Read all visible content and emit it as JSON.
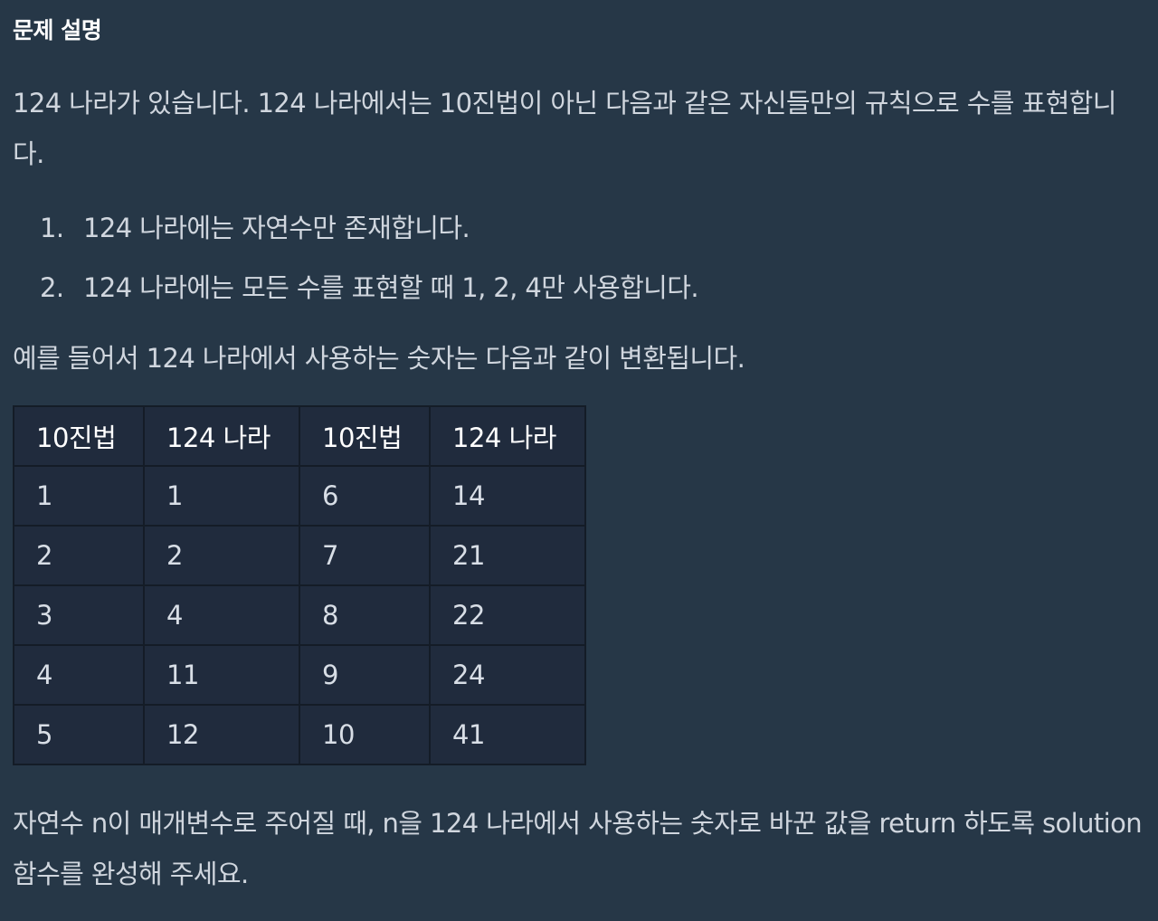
{
  "section": {
    "title": "문제 설명"
  },
  "intro": {
    "text": "124 나라가 있습니다. 124 나라에서는 10진법이 아닌 다음과 같은 자신들만의 규칙으로 수를 표현합니다."
  },
  "rules": [
    {
      "number": "1.",
      "text": "124 나라에는 자연수만 존재합니다."
    },
    {
      "number": "2.",
      "text": "124 나라에는 모든 수를 표현할 때 1, 2, 4만 사용합니다."
    }
  ],
  "example": {
    "text": "예를 들어서 124 나라에서 사용하는 숫자는 다음과 같이 변환됩니다."
  },
  "table": {
    "headers": [
      "10진법",
      "124 나라",
      "10진법",
      "124 나라"
    ],
    "rows": [
      [
        "1",
        "1",
        "6",
        "14"
      ],
      [
        "2",
        "2",
        "7",
        "21"
      ],
      [
        "3",
        "4",
        "8",
        "22"
      ],
      [
        "4",
        "11",
        "9",
        "24"
      ],
      [
        "5",
        "12",
        "10",
        "41"
      ]
    ]
  },
  "task": {
    "text": "자연수 n이 매개변수로 주어질 때, n을 124 나라에서 사용하는 숫자로 바꾼 값을 return 하도록 solution 함수를 완성해 주세요."
  }
}
